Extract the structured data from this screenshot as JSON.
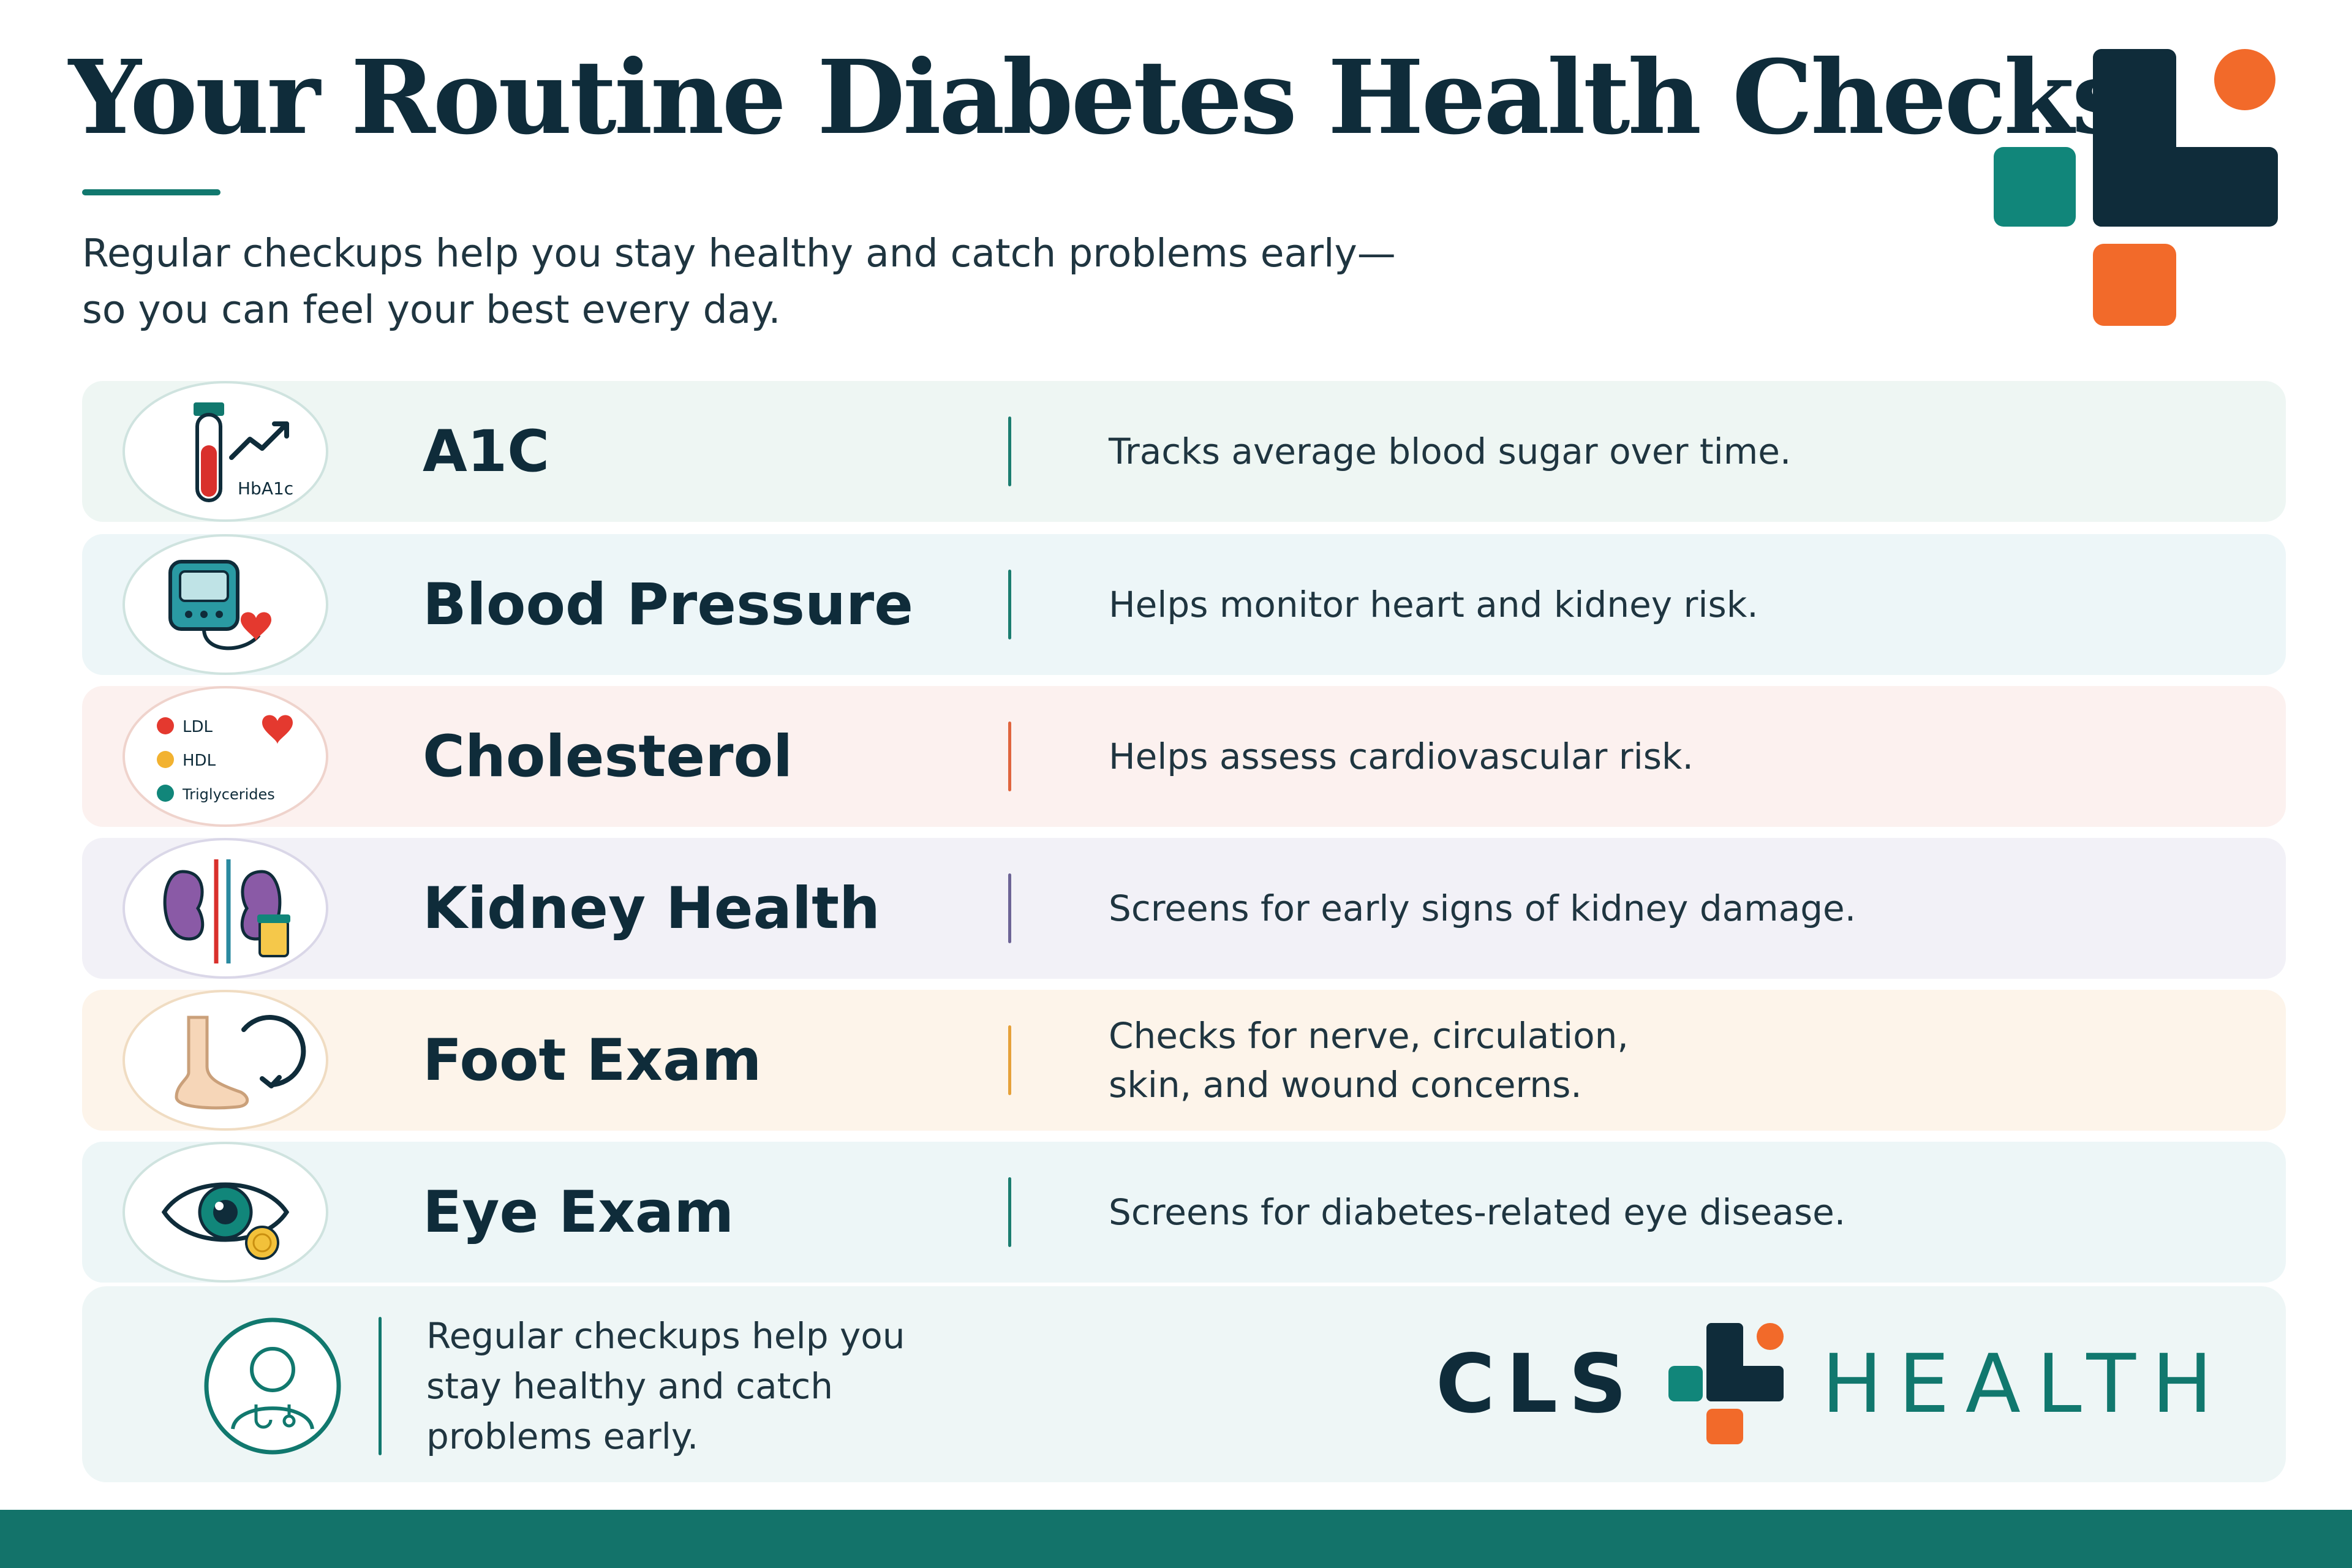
{
  "header": {
    "title": "Your Routine Diabetes Health Checks",
    "subtitle_line1": "Regular checkups help you stay healthy and catch problems early—",
    "subtitle_line2": "so you can feel your best every day."
  },
  "checks": [
    {
      "label": "A1C",
      "description": "Tracks average blood sugar over time.",
      "icon": "test-tube-chart-icon",
      "icon_text": "HbA1c",
      "row_color": "#eef6f3",
      "divider_color": "#1b7d70"
    },
    {
      "label": "Blood Pressure",
      "description": "Helps monitor heart and kidney risk.",
      "icon": "blood-pressure-monitor-icon",
      "row_color": "#edf6f8",
      "divider_color": "#1b7d70"
    },
    {
      "label": "Cholesterol",
      "description": "Helps assess cardiovascular risk.",
      "icon": "cholesterol-panel-icon",
      "icon_legend": [
        "LDL",
        "HDL",
        "Triglycerides"
      ],
      "row_color": "#fcf1ef",
      "divider_color": "#e0653e"
    },
    {
      "label": "Kidney Health",
      "description": "Screens for early signs of kidney damage.",
      "icon": "kidneys-icon",
      "row_color": "#f2f1f7",
      "divider_color": "#6d6496"
    },
    {
      "label": "Foot Exam",
      "description_line1": "Checks for nerve, circulation,",
      "description_line2": "skin, and wound concerns.",
      "icon": "foot-icon",
      "row_color": "#fdf4ea",
      "divider_color": "#e6a13a"
    },
    {
      "label": "Eye Exam",
      "description": "Screens for diabetes-related eye disease.",
      "icon": "eye-icon",
      "row_color": "#edf6f7",
      "divider_color": "#1b7d70"
    }
  ],
  "footer": {
    "text_line1": "Regular checkups help you",
    "text_line2": "stay healthy and catch",
    "text_line3": "problems early.",
    "icon": "doctor-icon",
    "brand_left": "CLS",
    "brand_right": "HEALTH"
  },
  "colors": {
    "navy": "#0f2c3a",
    "teal": "#11786e",
    "orange": "#f26a2a",
    "footer_band": "#13736a"
  }
}
